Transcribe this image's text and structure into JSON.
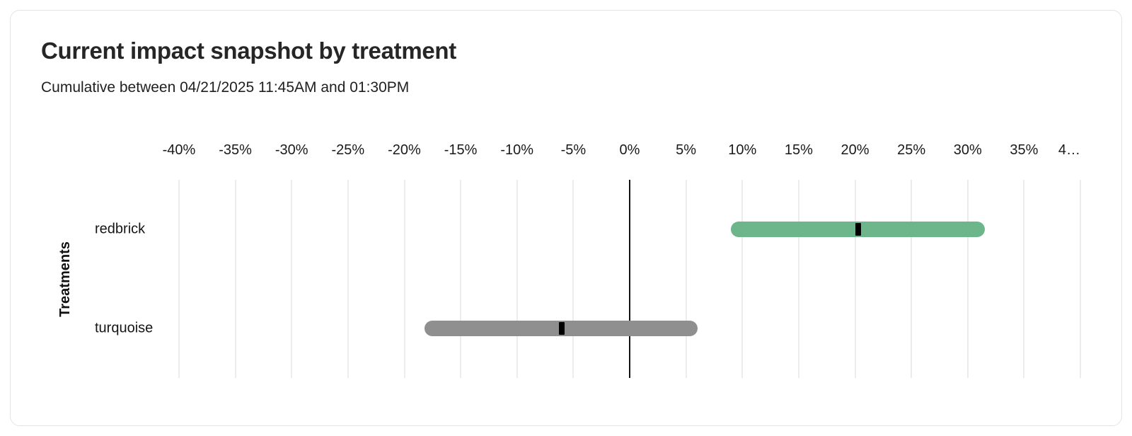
{
  "card": {
    "title": "Current impact snapshot by treatment",
    "subtitle": "Cumulative between 04/21/2025 11:45AM and 01:30PM"
  },
  "chart_data": {
    "type": "bar",
    "variant": "horizontal-interval-bars",
    "title": "Current impact snapshot by treatment",
    "subtitle": "Cumulative between 04/21/2025 11:45AM and 01:30PM",
    "xlabel": "",
    "ylabel": "Treatments",
    "xlim": [
      -40,
      40
    ],
    "grid": true,
    "legend": false,
    "zero_line": true,
    "x_ticks": [
      {
        "value": -40,
        "label": "-40%"
      },
      {
        "value": -35,
        "label": "-35%"
      },
      {
        "value": -30,
        "label": "-30%"
      },
      {
        "value": -25,
        "label": "-25%"
      },
      {
        "value": -20,
        "label": "-20%"
      },
      {
        "value": -15,
        "label": "-15%"
      },
      {
        "value": -10,
        "label": "-10%"
      },
      {
        "value": -5,
        "label": "-5%"
      },
      {
        "value": 0,
        "label": "0%"
      },
      {
        "value": 5,
        "label": "5%"
      },
      {
        "value": 10,
        "label": "10%"
      },
      {
        "value": 15,
        "label": "15%"
      },
      {
        "value": 20,
        "label": "20%"
      },
      {
        "value": 25,
        "label": "25%"
      },
      {
        "value": 30,
        "label": "30%"
      },
      {
        "value": 35,
        "label": "35%"
      },
      {
        "value": 40,
        "label": "4…"
      }
    ],
    "categories": [
      "redbrick",
      "turquoise"
    ],
    "series": [
      {
        "name": "redbrick",
        "low": 9.0,
        "mid": 20.3,
        "high": 31.5,
        "bar_color": "#6DB58A"
      },
      {
        "name": "turquoise",
        "low": -18.2,
        "mid": -6.0,
        "high": 6.0,
        "bar_color": "#8F8F8F"
      }
    ],
    "colors": {
      "marker": "#000000",
      "grid": "#ECECEC",
      "zero_line": "#151515",
      "bar_green": "#6DB58A",
      "bar_gray": "#8F8F8F"
    }
  }
}
